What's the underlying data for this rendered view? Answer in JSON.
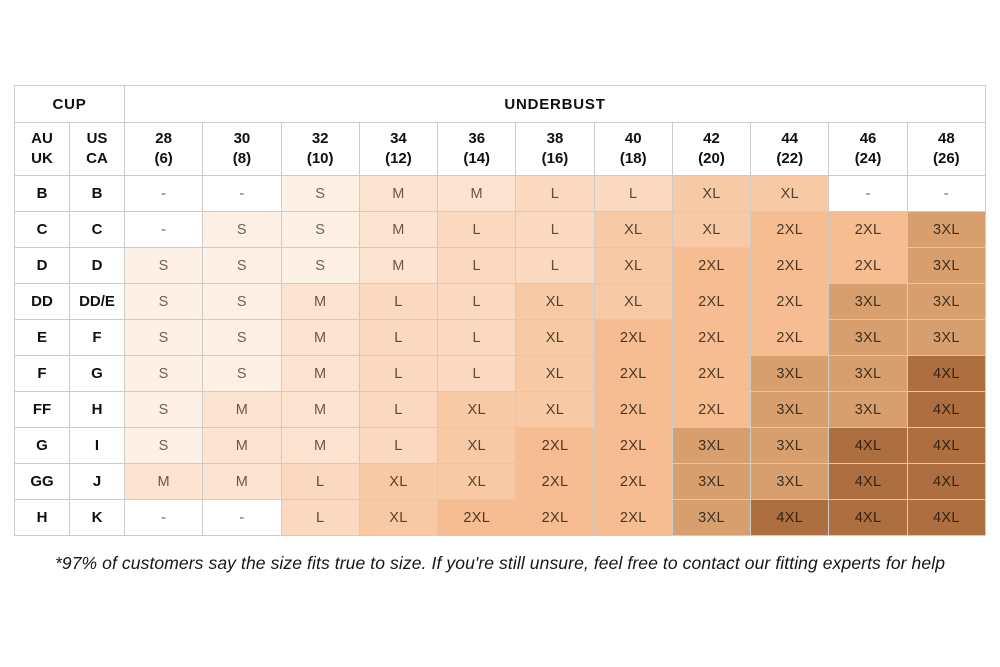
{
  "chart_data": {
    "type": "table",
    "header_groups": {
      "cup": "CUP",
      "underbust": "UNDERBUST"
    },
    "cup_columns": [
      [
        "AU",
        "UK"
      ],
      [
        "US",
        "CA"
      ]
    ],
    "underbust_columns": [
      [
        "28",
        "(6)"
      ],
      [
        "30",
        "(8)"
      ],
      [
        "32",
        "(10)"
      ],
      [
        "34",
        "(12)"
      ],
      [
        "36",
        "(14)"
      ],
      [
        "38",
        "(16)"
      ],
      [
        "40",
        "(18)"
      ],
      [
        "42",
        "(20)"
      ],
      [
        "44",
        "(22)"
      ],
      [
        "46",
        "(24)"
      ],
      [
        "48",
        "(26)"
      ]
    ],
    "rows": [
      {
        "cup_au_uk": "B",
        "cup_us_ca": "B",
        "sizes": [
          "-",
          "-",
          "S",
          "M",
          "M",
          "L",
          "L",
          "XL",
          "XL",
          "-",
          "-"
        ]
      },
      {
        "cup_au_uk": "C",
        "cup_us_ca": "C",
        "sizes": [
          "-",
          "S",
          "S",
          "M",
          "L",
          "L",
          "XL",
          "XL",
          "2XL",
          "2XL",
          "3XL"
        ]
      },
      {
        "cup_au_uk": "D",
        "cup_us_ca": "D",
        "sizes": [
          "S",
          "S",
          "S",
          "M",
          "L",
          "L",
          "XL",
          "2XL",
          "2XL",
          "2XL",
          "3XL"
        ]
      },
      {
        "cup_au_uk": "DD",
        "cup_us_ca": "DD/E",
        "sizes": [
          "S",
          "S",
          "M",
          "L",
          "L",
          "XL",
          "XL",
          "2XL",
          "2XL",
          "3XL",
          "3XL"
        ]
      },
      {
        "cup_au_uk": "E",
        "cup_us_ca": "F",
        "sizes": [
          "S",
          "S",
          "M",
          "L",
          "L",
          "XL",
          "2XL",
          "2XL",
          "2XL",
          "3XL",
          "3XL"
        ]
      },
      {
        "cup_au_uk": "F",
        "cup_us_ca": "G",
        "sizes": [
          "S",
          "S",
          "M",
          "L",
          "L",
          "XL",
          "2XL",
          "2XL",
          "3XL",
          "3XL",
          "4XL"
        ]
      },
      {
        "cup_au_uk": "FF",
        "cup_us_ca": "H",
        "sizes": [
          "S",
          "M",
          "M",
          "L",
          "XL",
          "XL",
          "2XL",
          "2XL",
          "3XL",
          "3XL",
          "4XL"
        ]
      },
      {
        "cup_au_uk": "G",
        "cup_us_ca": "I",
        "sizes": [
          "S",
          "M",
          "M",
          "L",
          "XL",
          "2XL",
          "2XL",
          "3XL",
          "3XL",
          "4XL",
          "4XL"
        ]
      },
      {
        "cup_au_uk": "GG",
        "cup_us_ca": "J",
        "sizes": [
          "M",
          "M",
          "L",
          "XL",
          "XL",
          "2XL",
          "2XL",
          "3XL",
          "3XL",
          "4XL",
          "4XL"
        ]
      },
      {
        "cup_au_uk": "H",
        "cup_us_ca": "K",
        "sizes": [
          "-",
          "-",
          "L",
          "XL",
          "2XL",
          "2XL",
          "2XL",
          "3XL",
          "4XL",
          "4XL",
          "4XL"
        ]
      }
    ]
  },
  "styles": {
    "grid_color": "#cccccc",
    "palette": {
      "-": {
        "bg": "#ffffff",
        "fg": "#666666"
      },
      "S": {
        "bg": "#fdf0e4",
        "fg": "#6e6156"
      },
      "M": {
        "bg": "#fce4d0",
        "fg": "#69594a"
      },
      "L": {
        "bg": "#fad9c0",
        "fg": "#5f4c3c"
      },
      "XL": {
        "bg": "#f8c9a5",
        "fg": "#55432e"
      },
      "2XL": {
        "bg": "#f6bc92",
        "fg": "#4d3a25"
      },
      "3XL": {
        "bg": "#d89f6e",
        "fg": "#40301c"
      },
      "4XL": {
        "bg": "#ae6f40",
        "fg": "#342312"
      }
    }
  },
  "footnote": "*97% of customers say the size fits true to size. If you're still unsure, feel free to contact our fitting experts for help"
}
